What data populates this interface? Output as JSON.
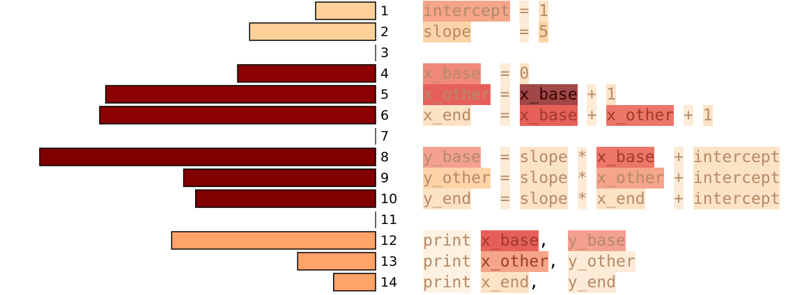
{
  "chart_data": {
    "type": "bar",
    "orientation": "horizontal",
    "categories": [
      "1",
      "2",
      "3",
      "4",
      "5",
      "6",
      "7",
      "8",
      "9",
      "10",
      "11",
      "12",
      "13",
      "14"
    ],
    "values": [
      1.0,
      2.1,
      0.0,
      2.3,
      4.5,
      4.6,
      0.0,
      5.6,
      3.2,
      3.0,
      0.0,
      3.4,
      1.3,
      0.7
    ],
    "bar_colors": [
      "#ffd19a",
      "#ffd19a",
      "#ffffff",
      "#8b0000",
      "#8b0000",
      "#8b0000",
      "#ffffff",
      "#800000",
      "#800000",
      "#800000",
      "#ffffff",
      "#ffa36a",
      "#ffa36a",
      "#ffa36a"
    ]
  },
  "code_lines": [
    {
      "line": "1",
      "tokens": [
        {
          "t": "intercept",
          "bg": "#f4a58a"
        },
        {
          "t": " "
        },
        {
          "t": "=",
          "bg": "#fdebd7"
        },
        {
          "t": " "
        },
        {
          "t": "1",
          "bg": "#fde3c5"
        }
      ]
    },
    {
      "line": "2",
      "tokens": [
        {
          "t": "slope",
          "bg": "#fdd4a8"
        },
        {
          "t": "     "
        },
        {
          "t": "=",
          "bg": "#fdebd7"
        },
        {
          "t": " "
        },
        {
          "t": "5",
          "bg": "#fdd4a8"
        }
      ]
    },
    {
      "line": "3",
      "tokens": []
    },
    {
      "line": "4",
      "tokens": [
        {
          "t": "x_base",
          "bg": "#f08a78"
        },
        {
          "t": "  "
        },
        {
          "t": "=",
          "bg": "#fdebd7"
        },
        {
          "t": " "
        },
        {
          "t": "0",
          "bg": "#fde3c5"
        }
      ]
    },
    {
      "line": "5",
      "tokens": [
        {
          "t": "x_other",
          "bg": "#e6605a"
        },
        {
          "t": " "
        },
        {
          "t": "=",
          "bg": "#fdebd7"
        },
        {
          "t": " "
        },
        {
          "t": "x_base",
          "bg": "#a04848",
          "cls": "dark"
        },
        {
          "t": " "
        },
        {
          "t": "+",
          "bg": "#fdebd7"
        },
        {
          "t": " "
        },
        {
          "t": "1",
          "bg": "#fde3c5"
        }
      ]
    },
    {
      "line": "6",
      "tokens": [
        {
          "t": "x_end",
          "bg": "#fde3c5"
        },
        {
          "t": "   "
        },
        {
          "t": "=",
          "bg": "#fdebd7"
        },
        {
          "t": " "
        },
        {
          "t": "x_base",
          "bg": "#e6605a",
          "cls": "mid"
        },
        {
          "t": " "
        },
        {
          "t": "+",
          "bg": "#fdebd7"
        },
        {
          "t": " "
        },
        {
          "t": "x_other",
          "bg": "#ec7668",
          "cls": "mid"
        },
        {
          "t": " "
        },
        {
          "t": "+",
          "bg": "#fdebd7"
        },
        {
          "t": " "
        },
        {
          "t": "1",
          "bg": "#fde3c5"
        }
      ]
    },
    {
      "line": "7",
      "tokens": []
    },
    {
      "line": "8",
      "tokens": [
        {
          "t": "y_base",
          "bg": "#f4a090"
        },
        {
          "t": "  "
        },
        {
          "t": "=",
          "bg": "#fdebd7"
        },
        {
          "t": " "
        },
        {
          "t": "slope",
          "bg": "#fde3c5"
        },
        {
          "t": " "
        },
        {
          "t": "*",
          "bg": "#fdebd7"
        },
        {
          "t": " "
        },
        {
          "t": "x_base",
          "bg": "#ec7668",
          "cls": "mid"
        },
        {
          "t": "  "
        },
        {
          "t": "+",
          "bg": "#fdebd7"
        },
        {
          "t": " "
        },
        {
          "t": "intercept",
          "bg": "#fde3c5"
        }
      ]
    },
    {
      "line": "9",
      "tokens": [
        {
          "t": "y_other",
          "bg": "#fdd4a8"
        },
        {
          "t": " "
        },
        {
          "t": "=",
          "bg": "#fdebd7"
        },
        {
          "t": " "
        },
        {
          "t": "slope",
          "bg": "#fde3c5"
        },
        {
          "t": " "
        },
        {
          "t": "*",
          "bg": "#fdebd7"
        },
        {
          "t": " "
        },
        {
          "t": "x_other",
          "bg": "#f4a58a"
        },
        {
          "t": " "
        },
        {
          "t": "+",
          "bg": "#fdebd7"
        },
        {
          "t": " "
        },
        {
          "t": "intercept",
          "bg": "#fde3c5"
        }
      ]
    },
    {
      "line": "10",
      "tokens": [
        {
          "t": "y_end",
          "bg": "#fde3c5"
        },
        {
          "t": "   "
        },
        {
          "t": "=",
          "bg": "#fdebd7"
        },
        {
          "t": " "
        },
        {
          "t": "slope",
          "bg": "#fde3c5"
        },
        {
          "t": " "
        },
        {
          "t": "*",
          "bg": "#fdebd7"
        },
        {
          "t": " "
        },
        {
          "t": "x_end",
          "bg": "#fde3c5"
        },
        {
          "t": "   "
        },
        {
          "t": "+",
          "bg": "#fdebd7"
        },
        {
          "t": " "
        },
        {
          "t": "intercept",
          "bg": "#fde3c5"
        }
      ]
    },
    {
      "line": "11",
      "tokens": []
    },
    {
      "line": "12",
      "tokens": [
        {
          "t": "print",
          "bg": "#fdf1e2"
        },
        {
          "t": " "
        },
        {
          "t": "x_base",
          "bg": "#e6605a",
          "cls": "mid"
        },
        {
          "t": ",",
          "cls": "plain"
        },
        {
          "t": "  "
        },
        {
          "t": "y_base",
          "bg": "#f4a090"
        }
      ]
    },
    {
      "line": "13",
      "tokens": [
        {
          "t": "print",
          "bg": "#fdf1e2"
        },
        {
          "t": " "
        },
        {
          "t": "x_other",
          "bg": "#f4a58a",
          "cls": "mid"
        },
        {
          "t": ",",
          "cls": "plain"
        },
        {
          "t": " "
        },
        {
          "t": "y_other",
          "bg": "#fdebd7"
        }
      ]
    },
    {
      "line": "14",
      "tokens": [
        {
          "t": "print",
          "bg": "#fdf1e2"
        },
        {
          "t": " "
        },
        {
          "t": "x_end",
          "bg": "#fde3c5"
        },
        {
          "t": ",",
          "cls": "plain"
        },
        {
          "t": "   "
        },
        {
          "t": "y_end",
          "bg": "#fdebd7"
        }
      ]
    }
  ]
}
